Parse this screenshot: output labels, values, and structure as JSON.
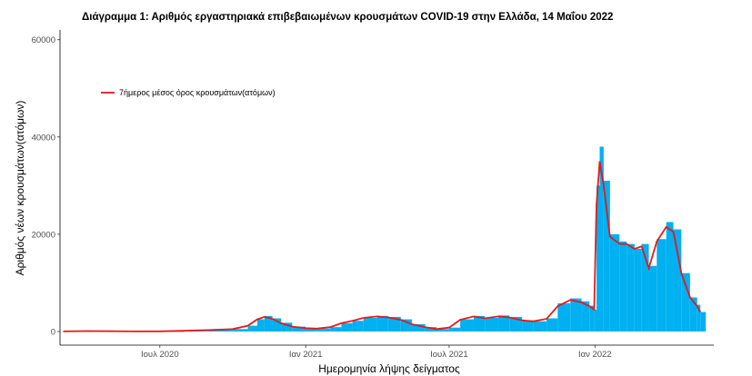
{
  "chart_data": {
    "type": "bar",
    "title": "Διάγραμμα 1: Αριθμός εργαστηριακά επιβεβαιωμένων κρουσμάτων COVID-19 στην Ελλάδα, 14 Μαΐου 2022",
    "xlabel": "Ημερομηνία λήψης δείγματος",
    "ylabel": "Αριθμός νέων κρουσμάτων(ατόμων)",
    "xlim": [
      "2020-02-26",
      "2022-05-31"
    ],
    "ylim": [
      0,
      62000
    ],
    "x_ticks": [
      {
        "date": "2020-07-01",
        "label": "Ιουλ 2020"
      },
      {
        "date": "2021-01-01",
        "label": "Ιαν 2021"
      },
      {
        "date": "2021-07-01",
        "label": "Ιουλ 2021"
      },
      {
        "date": "2022-01-01",
        "label": "Ιαν 2022"
      }
    ],
    "y_ticks": [
      0,
      20000,
      40000,
      60000
    ],
    "y_tick_labels": [
      "0",
      "20000",
      "40000",
      "60000"
    ],
    "grid": false,
    "legend_position": "top-left",
    "series": [
      {
        "kind": "bar",
        "color": "#00b0f0",
        "dates": [
          "2020-03-01",
          "2020-04-01",
          "2020-05-01",
          "2020-06-01",
          "2020-07-01",
          "2020-08-01",
          "2020-09-01",
          "2020-10-01",
          "2020-10-20",
          "2020-11-01",
          "2020-11-10",
          "2020-11-20",
          "2020-12-01",
          "2020-12-15",
          "2021-01-01",
          "2021-01-15",
          "2021-02-01",
          "2021-02-15",
          "2021-03-01",
          "2021-03-15",
          "2021-04-01",
          "2021-04-15",
          "2021-05-01",
          "2021-05-15",
          "2021-06-01",
          "2021-06-15",
          "2021-07-01",
          "2021-07-15",
          "2021-08-01",
          "2021-08-15",
          "2021-09-01",
          "2021-09-15",
          "2021-10-01",
          "2021-10-15",
          "2021-11-01",
          "2021-11-15",
          "2021-12-01",
          "2021-12-15",
          "2021-12-25",
          "2021-12-31",
          "2022-01-03",
          "2022-01-07",
          "2022-01-12",
          "2022-01-20",
          "2022-02-01",
          "2022-02-10",
          "2022-02-20",
          "2022-03-01",
          "2022-03-10",
          "2022-03-20",
          "2022-04-01",
          "2022-04-10",
          "2022-04-20",
          "2022-05-01",
          "2022-05-10",
          "2022-05-14"
        ],
        "values": [
          10,
          100,
          50,
          20,
          30,
          150,
          300,
          500,
          1200,
          2500,
          3200,
          2700,
          1800,
          1000,
          700,
          600,
          900,
          1700,
          2200,
          2800,
          3200,
          3000,
          2500,
          1500,
          900,
          500,
          800,
          2500,
          3200,
          2800,
          3300,
          3000,
          2300,
          2100,
          2700,
          5800,
          6800,
          6200,
          5300,
          4500,
          30000,
          38000,
          31000,
          20000,
          18500,
          18000,
          17000,
          18000,
          13500,
          19000,
          22500,
          21000,
          12000,
          7000,
          5500,
          4000
        ]
      },
      {
        "kind": "line",
        "color": "#e41a1c",
        "name": "7ήμερος μέσος όρος κρουσμάτων(ατόμων)",
        "dates": [
          "2020-03-01",
          "2020-04-01",
          "2020-05-01",
          "2020-06-01",
          "2020-07-01",
          "2020-08-01",
          "2020-09-01",
          "2020-10-01",
          "2020-10-20",
          "2020-11-01",
          "2020-11-10",
          "2020-11-20",
          "2020-12-01",
          "2020-12-15",
          "2021-01-01",
          "2021-01-15",
          "2021-02-01",
          "2021-02-15",
          "2021-03-01",
          "2021-03-15",
          "2021-04-01",
          "2021-04-15",
          "2021-05-01",
          "2021-05-15",
          "2021-06-01",
          "2021-06-15",
          "2021-07-01",
          "2021-07-15",
          "2021-08-01",
          "2021-08-15",
          "2021-09-01",
          "2021-09-15",
          "2021-10-01",
          "2021-10-15",
          "2021-11-01",
          "2021-11-15",
          "2021-12-01",
          "2021-12-15",
          "2021-12-25",
          "2021-12-31",
          "2022-01-03",
          "2022-01-07",
          "2022-01-12",
          "2022-01-20",
          "2022-02-01",
          "2022-02-10",
          "2022-02-20",
          "2022-03-01",
          "2022-03-10",
          "2022-03-20",
          "2022-04-01",
          "2022-04-10",
          "2022-04-20",
          "2022-05-01",
          "2022-05-10",
          "2022-05-14"
        ],
        "values": [
          10,
          100,
          50,
          20,
          30,
          150,
          300,
          500,
          1200,
          2500,
          3000,
          2600,
          1700,
          1000,
          700,
          600,
          900,
          1700,
          2200,
          2800,
          3100,
          2900,
          2400,
          1500,
          900,
          500,
          800,
          2400,
          3100,
          2700,
          3100,
          2900,
          2300,
          2100,
          2600,
          5200,
          6500,
          6000,
          5200,
          4500,
          26000,
          35000,
          30000,
          19500,
          18000,
          18000,
          17000,
          17500,
          13000,
          18500,
          21500,
          20500,
          12000,
          7000,
          5200,
          4000
        ]
      }
    ]
  }
}
